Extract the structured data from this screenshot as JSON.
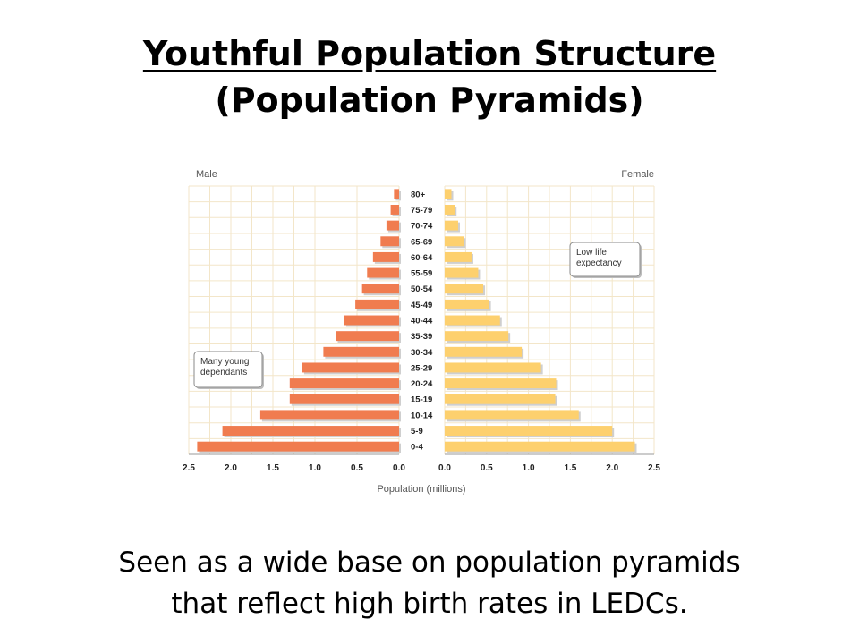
{
  "slide": {
    "title": "Youthful Population Structure",
    "subtitle": "(Population Pyramids)",
    "caption_line1": "Seen as a wide base on population pyramids",
    "caption_line2": "that reflect high birth rates in LEDCs."
  },
  "chart_data": {
    "type": "bar",
    "orientation": "horizontal-pyramid",
    "categories": [
      "0-4",
      "5-9",
      "10-14",
      "15-19",
      "20-24",
      "25-29",
      "30-34",
      "35-39",
      "40-44",
      "45-49",
      "50-54",
      "55-59",
      "60-64",
      "65-69",
      "70-74",
      "75-79",
      "80+"
    ],
    "series": [
      {
        "name": "Male",
        "color": "#f07c4f",
        "values": [
          2.4,
          2.1,
          1.65,
          1.3,
          1.3,
          1.15,
          0.9,
          0.75,
          0.65,
          0.52,
          0.44,
          0.38,
          0.31,
          0.22,
          0.15,
          0.1,
          0.06
        ]
      },
      {
        "name": "Female",
        "color": "#fdd06e",
        "values": [
          2.27,
          2.0,
          1.6,
          1.32,
          1.33,
          1.15,
          0.92,
          0.76,
          0.66,
          0.53,
          0.46,
          0.4,
          0.32,
          0.23,
          0.16,
          0.12,
          0.08
        ]
      }
    ],
    "xlabel": "Population (millions)",
    "xlim": [
      0,
      2.5
    ],
    "xticks": [
      2.5,
      2.0,
      1.5,
      1.0,
      0.5,
      0.0
    ],
    "xtick_labels": [
      "2.5",
      "2.0",
      "1.5",
      "1.0",
      "0.5",
      "0.0"
    ],
    "grid": true,
    "grid_color": "#f3e6c9",
    "annotations": [
      {
        "text_lines": [
          "Low life",
          "expectancy"
        ],
        "side": "female",
        "near": "65-69"
      },
      {
        "text_lines": [
          "Many young",
          "dependants"
        ],
        "side": "male",
        "near": "25-29"
      }
    ]
  }
}
